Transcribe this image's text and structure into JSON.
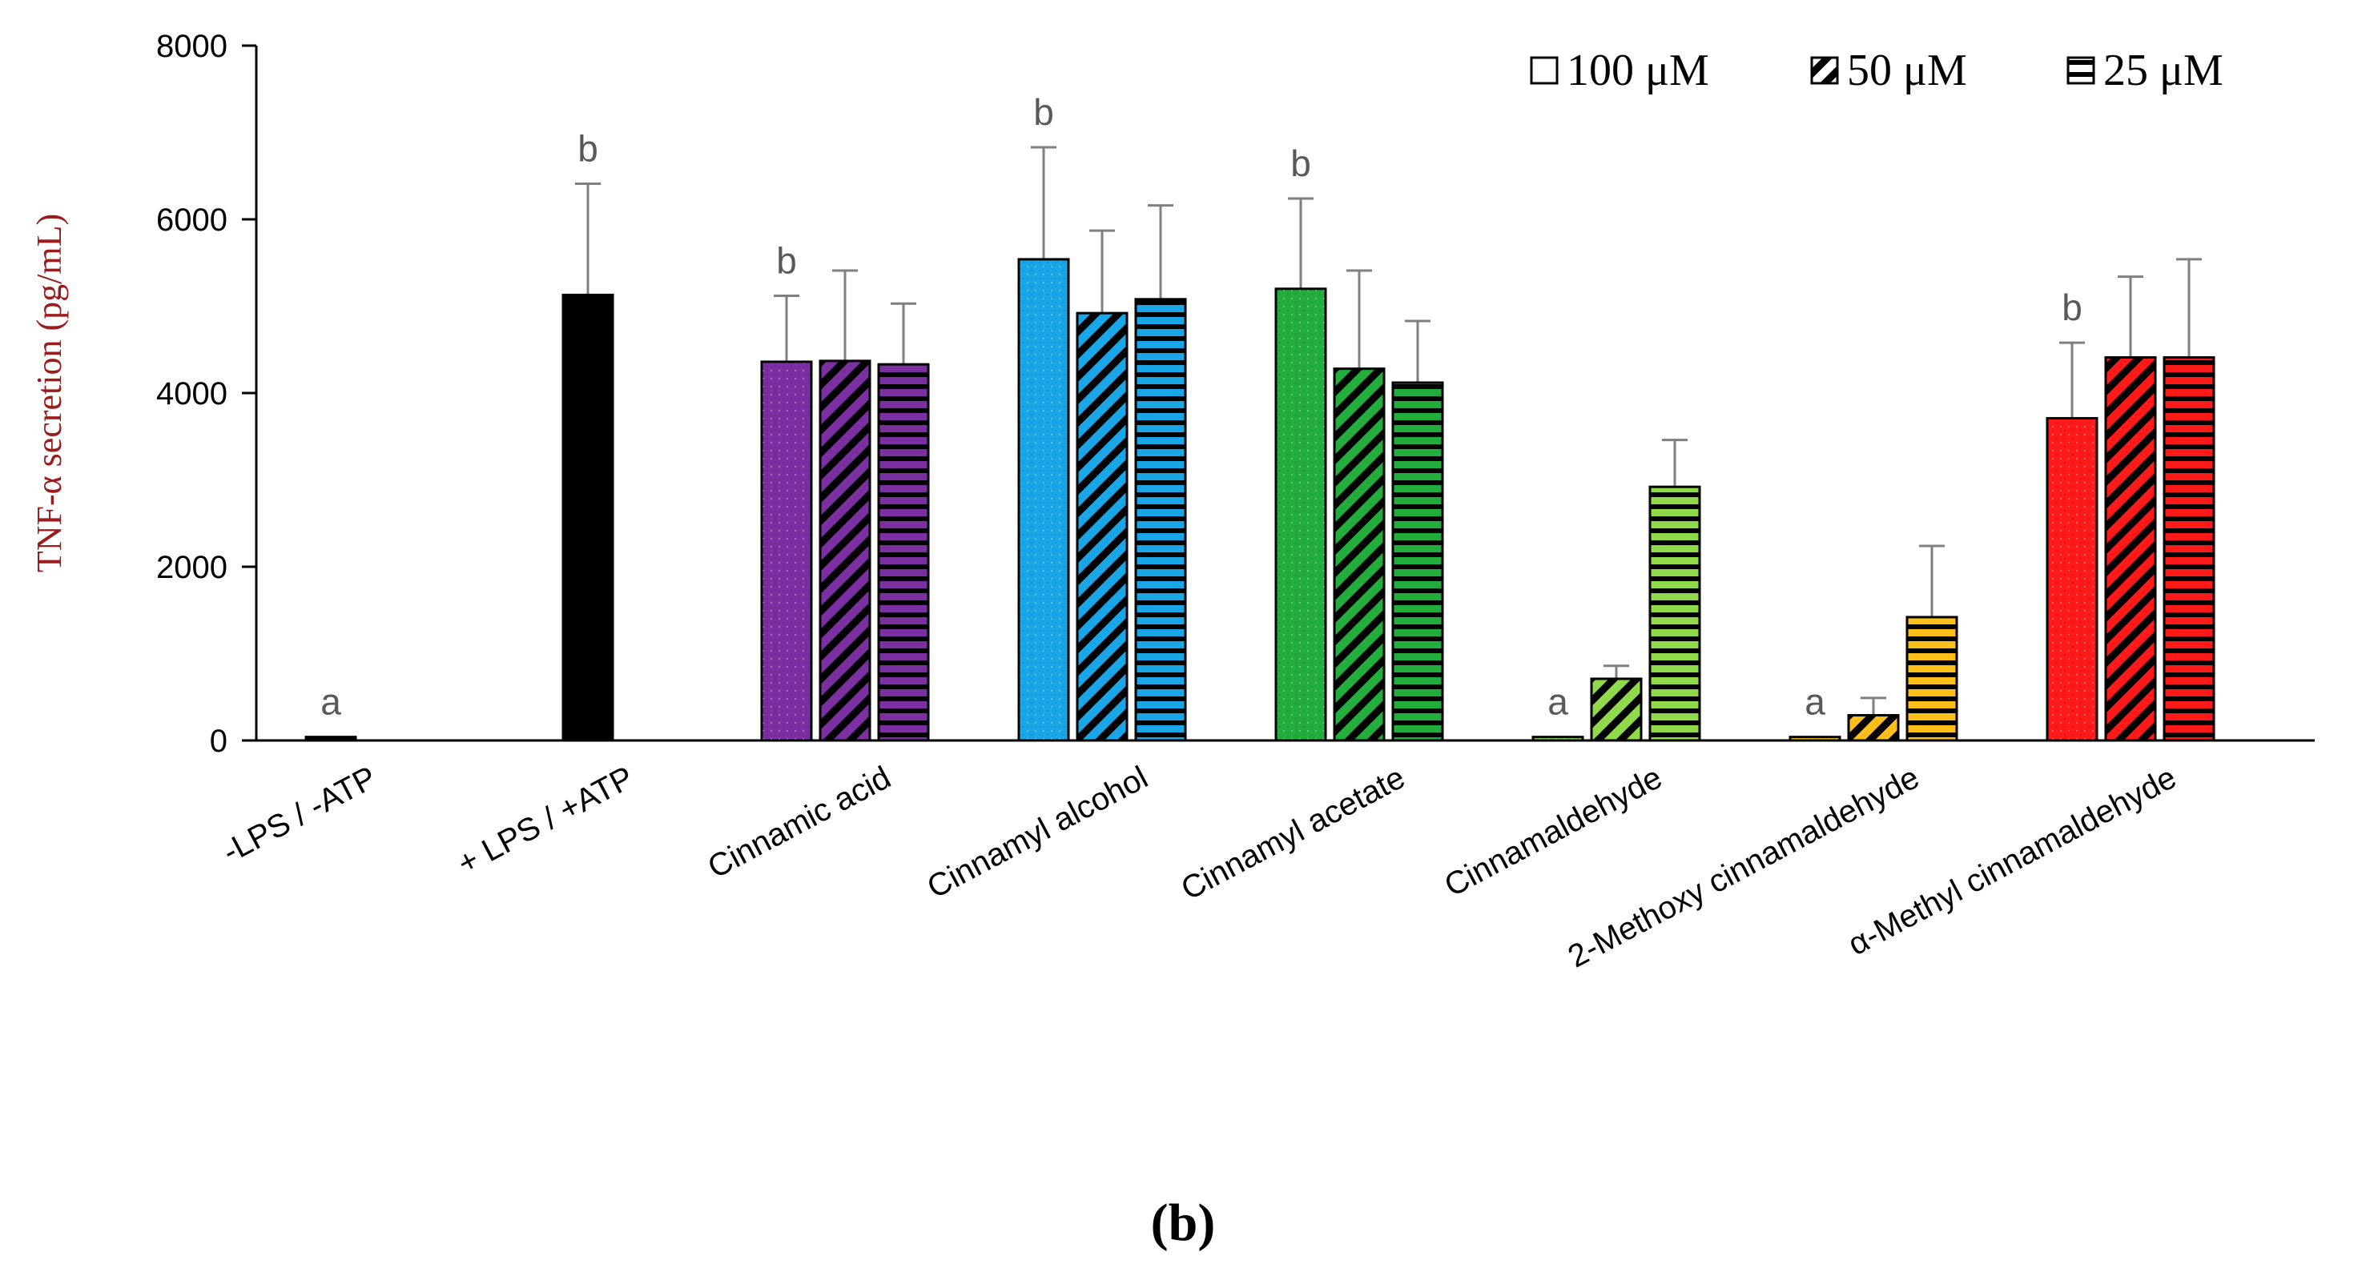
{
  "chart_data": {
    "type": "bar",
    "title": "",
    "xlabel": "",
    "ylabel": "TNF-α secretion (pg/mL)",
    "ylim": [
      0,
      8000
    ],
    "yticks": [
      0,
      2000,
      4000,
      6000,
      8000
    ],
    "grid": false,
    "legend_position": "top-right",
    "series": [
      {
        "name": "100 μM",
        "pattern": "dots"
      },
      {
        "name": "50 μM",
        "pattern": "diagonal"
      },
      {
        "name": "25 μM",
        "pattern": "horizontal"
      }
    ],
    "categories": [
      {
        "label": "-LPS / -ATP",
        "color": "#000000",
        "bars": [
          {
            "value": 40,
            "error": 0,
            "pattern": "solid",
            "letter": "a"
          }
        ]
      },
      {
        "label": "+ LPS / +ATP",
        "color": "#000000",
        "bars": [
          {
            "value": 5130,
            "error": 1280,
            "pattern": "solid",
            "letter": "b"
          }
        ]
      },
      {
        "label": "Cinnamic acid",
        "color": "#7b2fa0",
        "bars": [
          {
            "value": 4360,
            "error": 760,
            "pattern": "dots",
            "letter": "b"
          },
          {
            "value": 4370,
            "error": 1040,
            "pattern": "diagonal"
          },
          {
            "value": 4330,
            "error": 700,
            "pattern": "horizontal"
          }
        ]
      },
      {
        "label": "Cinnamyl alcohol",
        "color": "#1aa6e6",
        "bars": [
          {
            "value": 5540,
            "error": 1290,
            "pattern": "dots",
            "letter": "b"
          },
          {
            "value": 4920,
            "error": 950,
            "pattern": "diagonal"
          },
          {
            "value": 5080,
            "error": 1080,
            "pattern": "horizontal"
          }
        ]
      },
      {
        "label": "Cinnamyl acetate",
        "color": "#22ad3c",
        "bars": [
          {
            "value": 5200,
            "error": 1040,
            "pattern": "dots",
            "letter": "b"
          },
          {
            "value": 4280,
            "error": 1130,
            "pattern": "diagonal"
          },
          {
            "value": 4120,
            "error": 710,
            "pattern": "horizontal"
          }
        ]
      },
      {
        "label": "Cinnamaldehyde",
        "color": "#8fd94a",
        "bars": [
          {
            "value": 40,
            "error": 0,
            "pattern": "dots",
            "letter": "a"
          },
          {
            "value": 710,
            "error": 150,
            "pattern": "diagonal"
          },
          {
            "value": 2920,
            "error": 540,
            "pattern": "horizontal"
          }
        ]
      },
      {
        "label": "2-Methoxy cinnamaldehyde",
        "color": "#ffbf1a",
        "bars": [
          {
            "value": 40,
            "error": 0,
            "pattern": "dots",
            "letter": "a"
          },
          {
            "value": 290,
            "error": 200,
            "pattern": "diagonal"
          },
          {
            "value": 1420,
            "error": 820,
            "pattern": "horizontal"
          }
        ]
      },
      {
        "label": "α-Methyl  cinnamaldehyde",
        "color": "#ff1a1a",
        "bars": [
          {
            "value": 3710,
            "error": 870,
            "pattern": "dots",
            "letter": "b"
          },
          {
            "value": 4410,
            "error": 930,
            "pattern": "diagonal"
          },
          {
            "value": 4410,
            "error": 1130,
            "pattern": "horizontal"
          }
        ]
      }
    ]
  },
  "panel_label": "(b)"
}
